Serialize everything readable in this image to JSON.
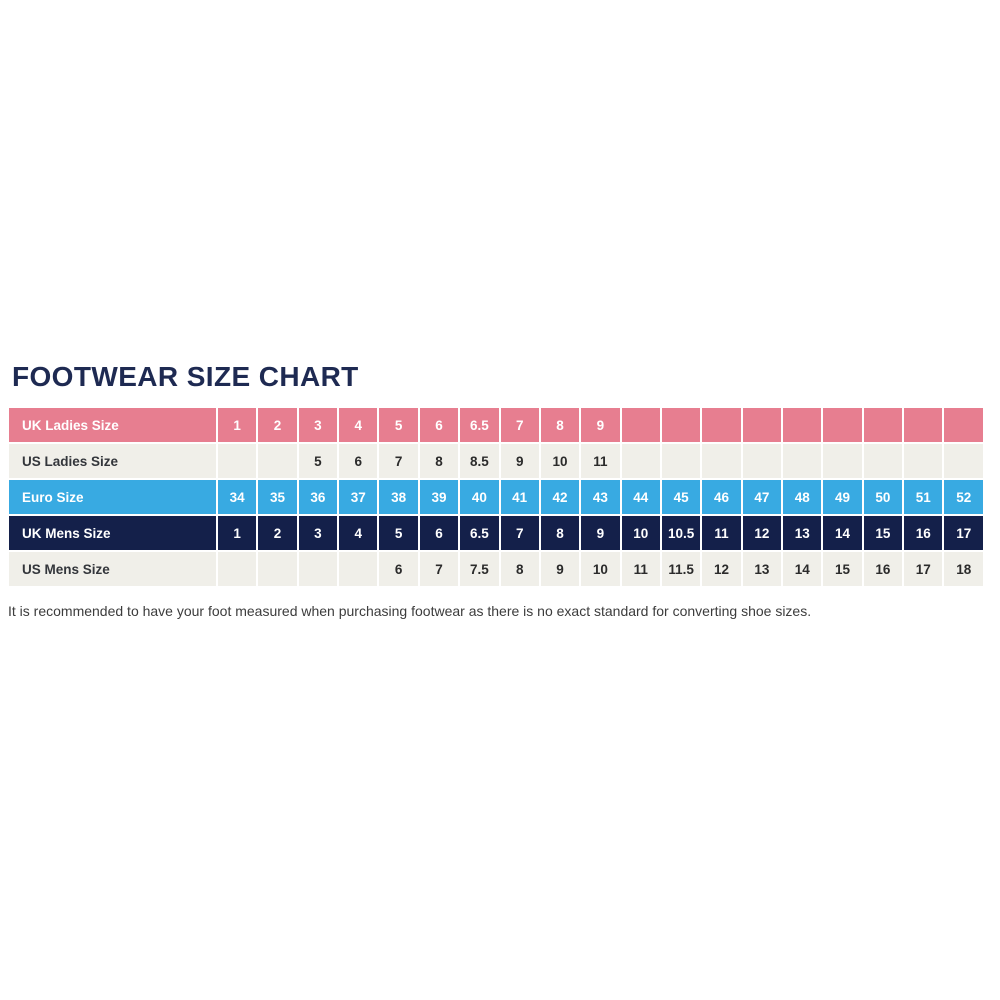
{
  "page": {
    "title": "FOOTWEAR SIZE CHART",
    "footnote": "It is recommended to have your foot measured when purchasing footwear as there is no exact standard for converting shoe sizes."
  },
  "colors": {
    "title_navy": "#1E2A52",
    "row_pink": "#E77E90",
    "row_blue": "#38AAE2",
    "row_navy": "#14204A",
    "row_offwhite": "#F0EFE9",
    "white_text": "#FFFFFF",
    "dark_text": "#2B2B2B",
    "footnote_text": "#3C3C3C",
    "page_background": "#FFFFFF"
  },
  "chart_data": {
    "type": "table",
    "title": "FOOTWEAR SIZE CHART",
    "column_count": 19,
    "rows": [
      {
        "label": "UK Ladies Size",
        "style": "pink",
        "values": [
          "1",
          "2",
          "3",
          "4",
          "5",
          "6",
          "6.5",
          "7",
          "8",
          "9",
          "",
          "",
          "",
          "",
          "",
          "",
          "",
          "",
          ""
        ]
      },
      {
        "label": "US Ladies Size",
        "style": "light",
        "values": [
          "",
          "",
          "5",
          "6",
          "7",
          "8",
          "8.5",
          "9",
          "10",
          "11",
          "",
          "",
          "",
          "",
          "",
          "",
          "",
          "",
          ""
        ]
      },
      {
        "label": "Euro Size",
        "style": "blue",
        "values": [
          "34",
          "35",
          "36",
          "37",
          "38",
          "39",
          "40",
          "41",
          "42",
          "43",
          "44",
          "45",
          "46",
          "47",
          "48",
          "49",
          "50",
          "51",
          "52"
        ]
      },
      {
        "label": "UK Mens Size",
        "style": "navy",
        "values": [
          "1",
          "2",
          "3",
          "4",
          "5",
          "6",
          "6.5",
          "7",
          "8",
          "9",
          "10",
          "10.5",
          "11",
          "12",
          "13",
          "14",
          "15",
          "16",
          "17"
        ]
      },
      {
        "label": "US Mens Size",
        "style": "light",
        "values": [
          "",
          "",
          "",
          "",
          "6",
          "7",
          "7.5",
          "8",
          "9",
          "10",
          "11",
          "11.5",
          "12",
          "13",
          "14",
          "15",
          "16",
          "17",
          "18"
        ]
      }
    ]
  }
}
